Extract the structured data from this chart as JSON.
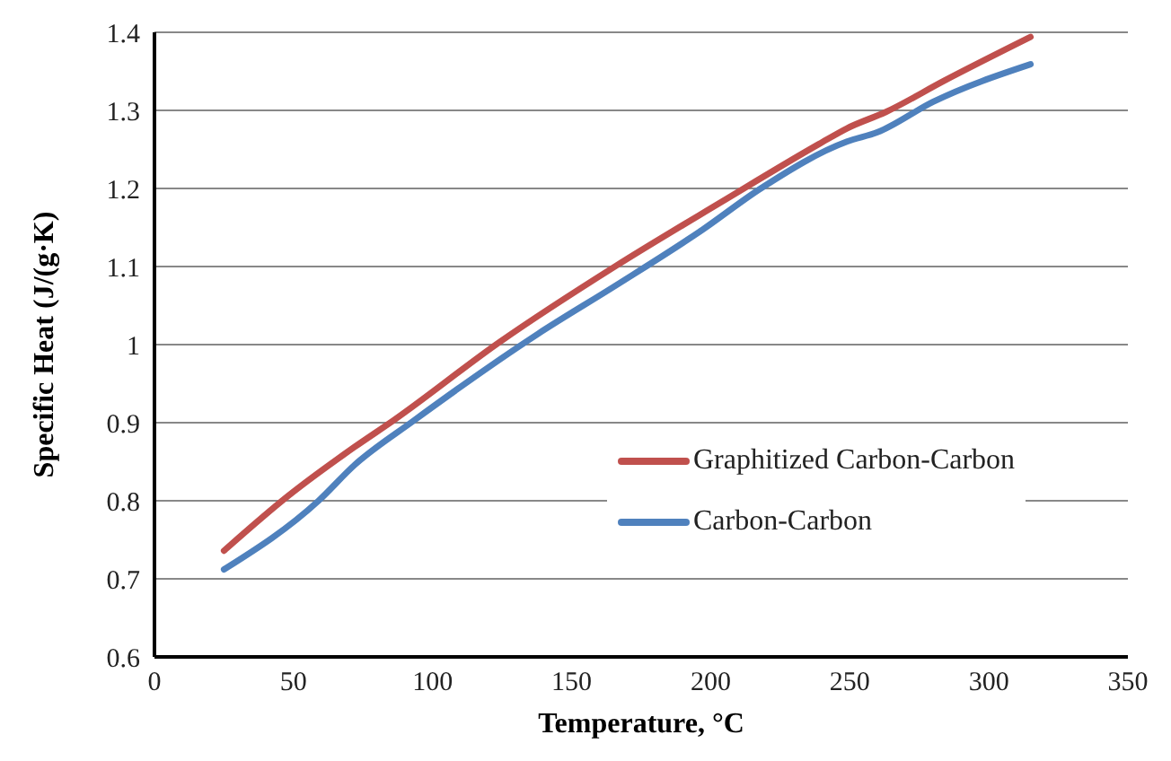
{
  "chart_data": {
    "type": "line",
    "xlabel": "Temperature, °C",
    "ylabel": "Specific Heat  (J/(g·K)",
    "xlim": [
      0,
      350
    ],
    "xticks": [
      0,
      50,
      100,
      150,
      200,
      250,
      300,
      350
    ],
    "ylim": [
      0.6,
      1.4
    ],
    "yticks": [
      0.6,
      0.7,
      0.8,
      0.9,
      1,
      1.1,
      1.2,
      1.3,
      1.4
    ],
    "grid": "y",
    "legend": "right",
    "marker": "none",
    "line_style": "solid",
    "series": [
      {
        "name": "Graphitized Carbon-Carbon",
        "color": "#c0504d",
        "x": [
          25,
          48,
          72,
          86,
          124,
          166,
          204,
          239,
          249,
          263,
          284,
          315
        ],
        "values": [
          0.736,
          0.806,
          0.869,
          0.903,
          1.003,
          1.101,
          1.183,
          1.257,
          1.277,
          1.298,
          1.338,
          1.394
        ]
      },
      {
        "name": "Carbon-Carbon",
        "color": "#4f81bd",
        "x": [
          25,
          59,
          72,
          93,
          138,
          166,
          197,
          218,
          249,
          260,
          280,
          315
        ],
        "values": [
          0.712,
          0.8,
          0.846,
          0.902,
          1.014,
          1.076,
          1.147,
          1.2,
          1.26,
          1.272,
          1.311,
          1.359
        ]
      }
    ]
  }
}
